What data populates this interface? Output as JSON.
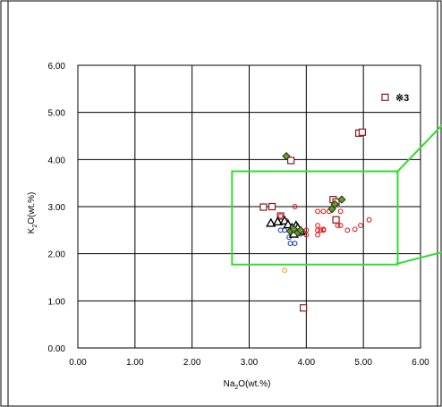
{
  "chart_data": {
    "type": "scatter",
    "xlabel_parts": [
      "Na",
      "2",
      "O(wt.%)"
    ],
    "ylabel_parts": [
      "K",
      "2",
      "O(wt.%)"
    ],
    "xlim": [
      0,
      6
    ],
    "ylim": [
      0,
      6
    ],
    "x_ticks": [
      "0.00",
      "1.00",
      "2.00",
      "3.00",
      "4.00",
      "5.00",
      "6.00"
    ],
    "y_ticks": [
      "0.00",
      "1.00",
      "2.00",
      "3.00",
      "4.00",
      "5.00",
      "6.00"
    ],
    "grid": true,
    "annotation": {
      "text": "※3",
      "x": 5.42,
      "y": 5.32
    },
    "inset_box": {
      "x0": 2.7,
      "y0": 1.77,
      "x1": 5.6,
      "y1": 3.75,
      "color": "#33dd33"
    },
    "series": [
      {
        "marker": "square",
        "color": "#8b1a1a",
        "points": [
          [
            5.38,
            5.32
          ],
          [
            4.92,
            4.56
          ],
          [
            4.98,
            4.58
          ],
          [
            3.73,
            3.98
          ],
          [
            4.47,
            3.15
          ],
          [
            4.52,
            3.1
          ],
          [
            3.25,
            2.99
          ],
          [
            3.4,
            3.0
          ],
          [
            3.55,
            2.8
          ],
          [
            4.52,
            2.72
          ],
          [
            3.95,
            0.85
          ]
        ]
      },
      {
        "marker": "circle",
        "color": "#e02020",
        "points": [
          [
            3.8,
            3.0
          ],
          [
            4.2,
            2.9
          ],
          [
            4.3,
            2.9
          ],
          [
            4.4,
            2.9
          ],
          [
            4.6,
            2.9
          ],
          [
            3.55,
            2.8
          ],
          [
            3.65,
            2.7
          ],
          [
            4.2,
            2.6
          ],
          [
            4.55,
            2.6
          ],
          [
            4.6,
            2.6
          ],
          [
            4.72,
            2.5
          ],
          [
            4.85,
            2.52
          ],
          [
            4.95,
            2.6
          ],
          [
            5.1,
            2.72
          ],
          [
            4.0,
            2.5
          ],
          [
            3.95,
            2.45
          ],
          [
            4.0,
            2.4
          ],
          [
            4.2,
            2.4
          ],
          [
            4.2,
            2.5
          ],
          [
            4.25,
            2.5
          ],
          [
            4.3,
            2.5
          ],
          [
            4.3,
            2.52
          ],
          [
            3.85,
            2.55
          ]
        ]
      },
      {
        "marker": "circle",
        "color": "#2040c0",
        "points": [
          [
            3.55,
            2.5
          ],
          [
            3.62,
            2.5
          ],
          [
            3.72,
            2.22
          ],
          [
            3.8,
            2.22
          ],
          [
            3.8,
            2.4
          ],
          [
            3.9,
            2.42
          ],
          [
            3.7,
            2.35
          ]
        ]
      },
      {
        "marker": "circle",
        "color": "#f0a020",
        "points": [
          [
            3.62,
            1.65
          ]
        ]
      },
      {
        "marker": "triangle",
        "color": "#000000",
        "points": [
          [
            3.38,
            2.65
          ],
          [
            3.5,
            2.68
          ],
          [
            3.62,
            2.7
          ],
          [
            3.68,
            2.62
          ],
          [
            3.75,
            2.55
          ],
          [
            3.8,
            2.48
          ],
          [
            3.82,
            2.6
          ],
          [
            3.85,
            2.55
          ],
          [
            3.9,
            2.48
          ],
          [
            3.78,
            2.42
          ]
        ]
      },
      {
        "marker": "diamond",
        "color": "#6a9a2a",
        "points": [
          [
            3.65,
            4.07
          ],
          [
            4.45,
            2.95
          ],
          [
            4.5,
            3.05
          ],
          [
            4.62,
            3.15
          ],
          [
            3.72,
            2.48
          ],
          [
            3.78,
            2.52
          ],
          [
            3.85,
            2.45
          ],
          [
            3.9,
            2.5
          ]
        ]
      }
    ]
  }
}
